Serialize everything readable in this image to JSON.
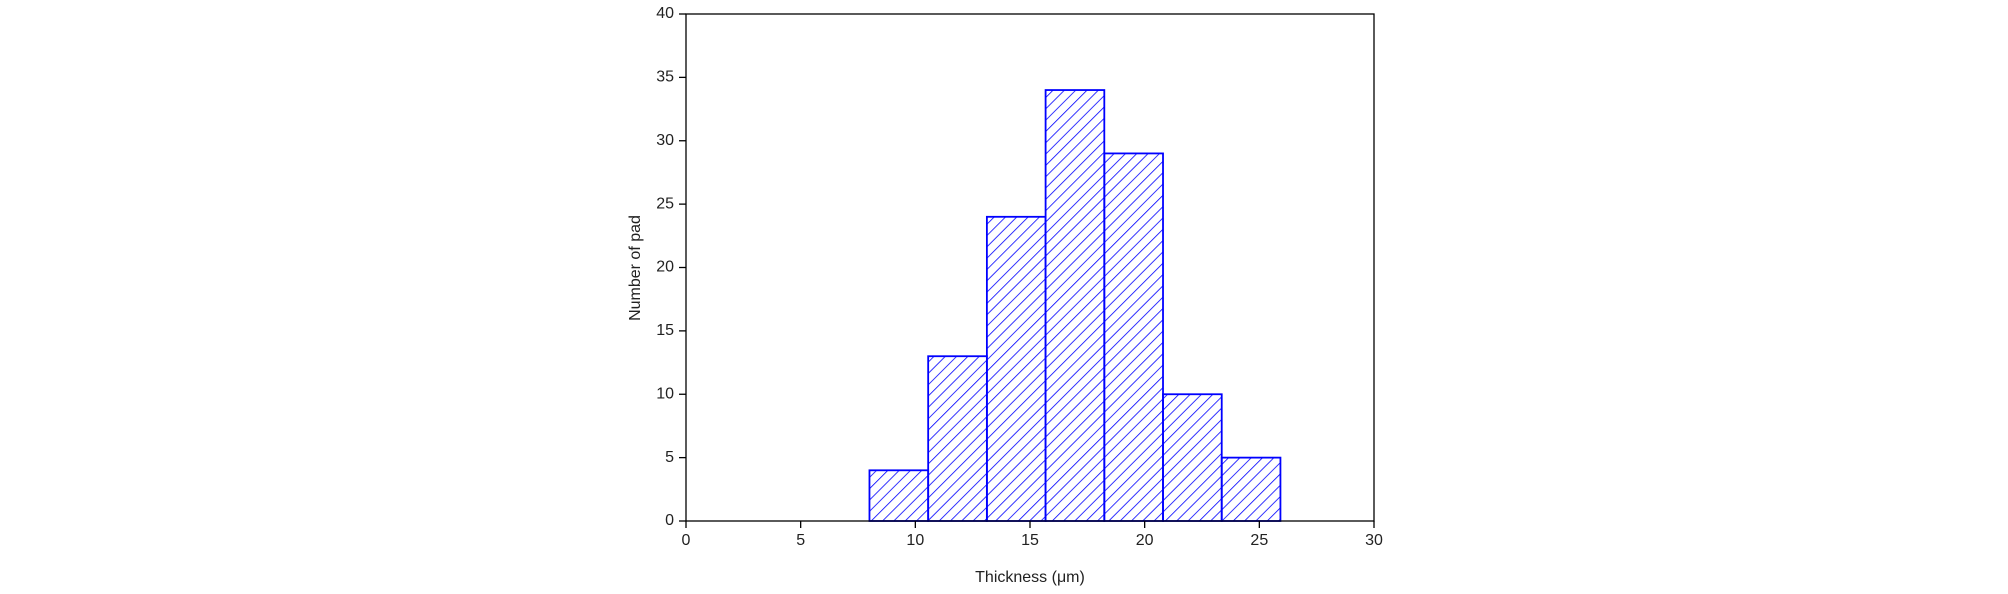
{
  "chart_data": {
    "type": "histogram",
    "x_label": "Thickness (μm)",
    "y_label": "Number of pad",
    "bins": [
      8.0,
      10.56,
      13.12,
      15.68,
      18.24,
      20.8,
      23.36,
      25.92
    ],
    "counts": [
      4,
      13,
      24,
      34,
      29,
      10,
      5
    ],
    "color": "#0000ff",
    "hatch": true,
    "xlim": [
      0,
      30
    ],
    "xticks": [
      0,
      5,
      10,
      15,
      20,
      25,
      30
    ],
    "ylim": [
      0,
      40
    ],
    "yticks": [
      0,
      5,
      10,
      15,
      20,
      25,
      30,
      35,
      40
    ]
  }
}
